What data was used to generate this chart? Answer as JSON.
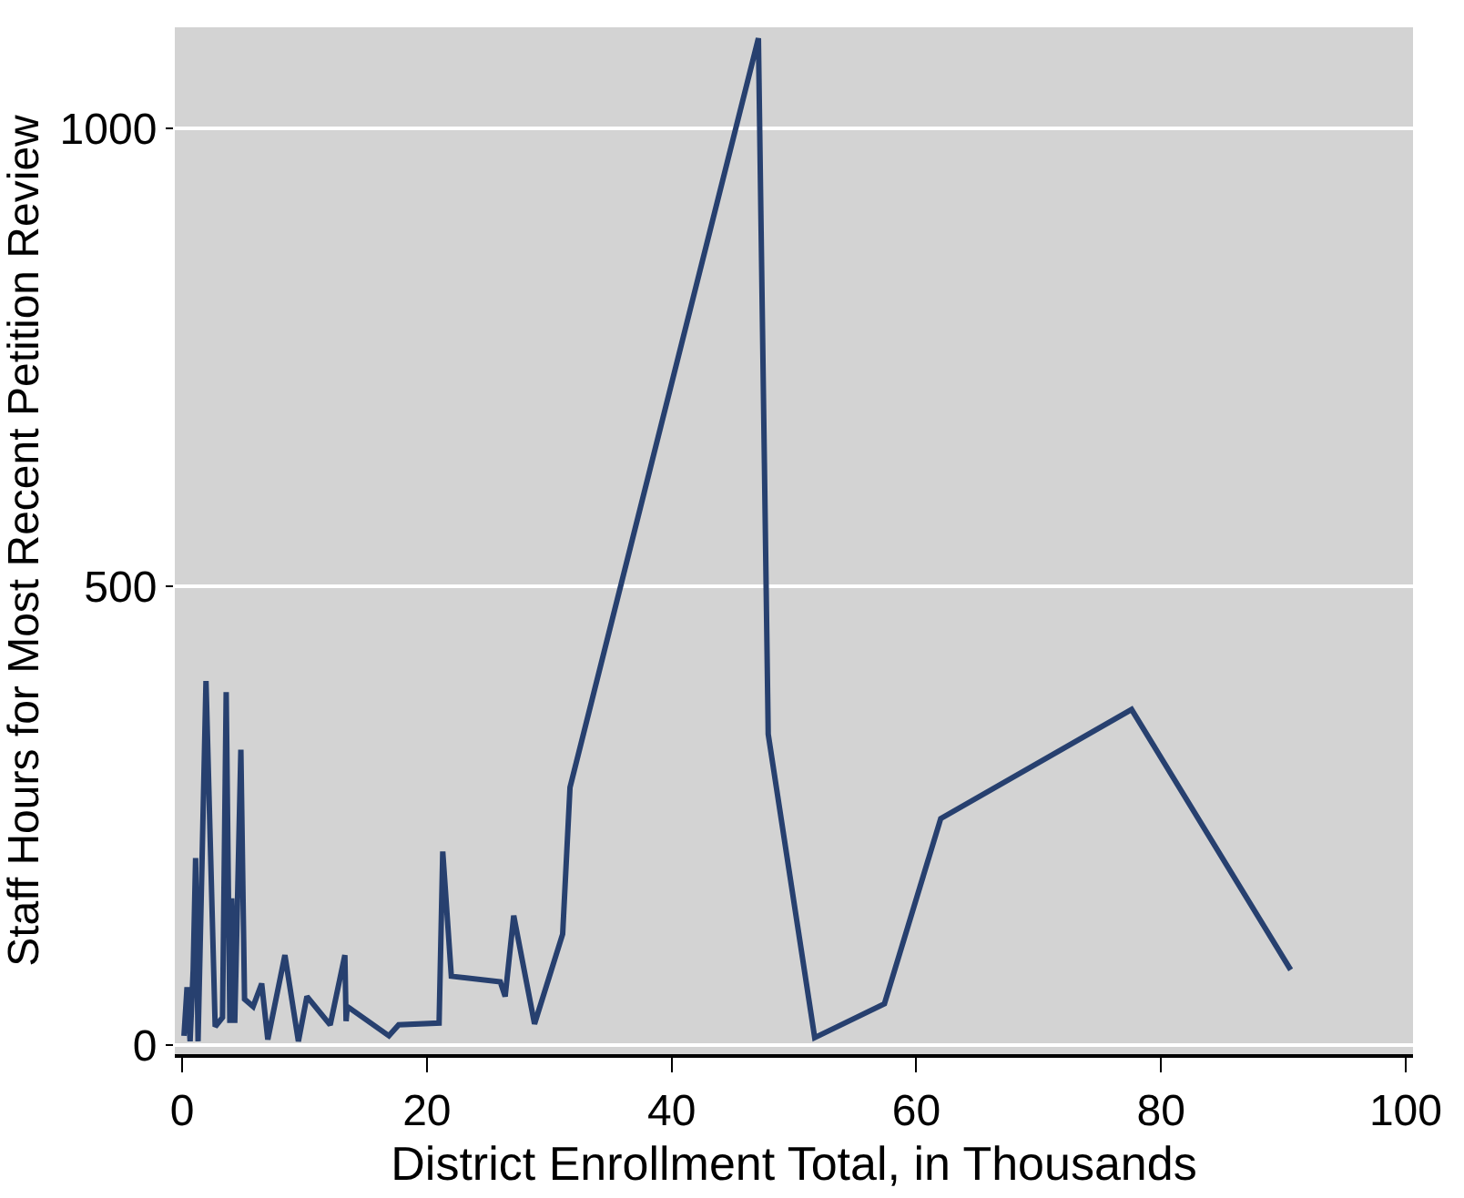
{
  "chart_data": {
    "type": "line",
    "xlabel": "District Enrollment Total, in Thousands",
    "ylabel": "Staff Hours for Most Recent Petition Review",
    "x": [
      0.15,
      0.4,
      0.65,
      0.9,
      1.1,
      1.3,
      1.95,
      2.7,
      3.3,
      3.6,
      3.9,
      4.05,
      4.3,
      4.8,
      5.1,
      5.8,
      6.5,
      7.0,
      8.4,
      9.5,
      10.2,
      12.1,
      13.3,
      13.4,
      13.5,
      16.9,
      17.7,
      21.0,
      21.3,
      22.0,
      26.0,
      26.4,
      27.1,
      28.8,
      31.1,
      31.7,
      47.1,
      47.9,
      51.7,
      57.4,
      62.0,
      77.6,
      90.6
    ],
    "series": [
      {
        "color": "#27406f",
        "values": [
          10,
          63,
          4,
          82,
          204,
          4,
          397,
          20,
          30,
          385,
          24,
          160,
          24,
          322,
          50,
          42,
          67,
          6,
          98,
          4,
          53,
          22,
          98,
          26,
          42,
          10,
          22,
          24,
          211,
          75,
          69,
          53,
          141,
          23,
          121,
          281,
          1098,
          339,
          8,
          45,
          247,
          366,
          82
        ]
      }
    ],
    "xlim": [
      -0.6,
      100.6
    ],
    "ylim": [
      -10,
      1110
    ],
    "xticks": [
      0,
      20,
      40,
      60,
      80,
      100
    ],
    "yticks": [
      0,
      500,
      1000
    ],
    "grid": "y",
    "marker": "none",
    "line_style": "solid"
  }
}
